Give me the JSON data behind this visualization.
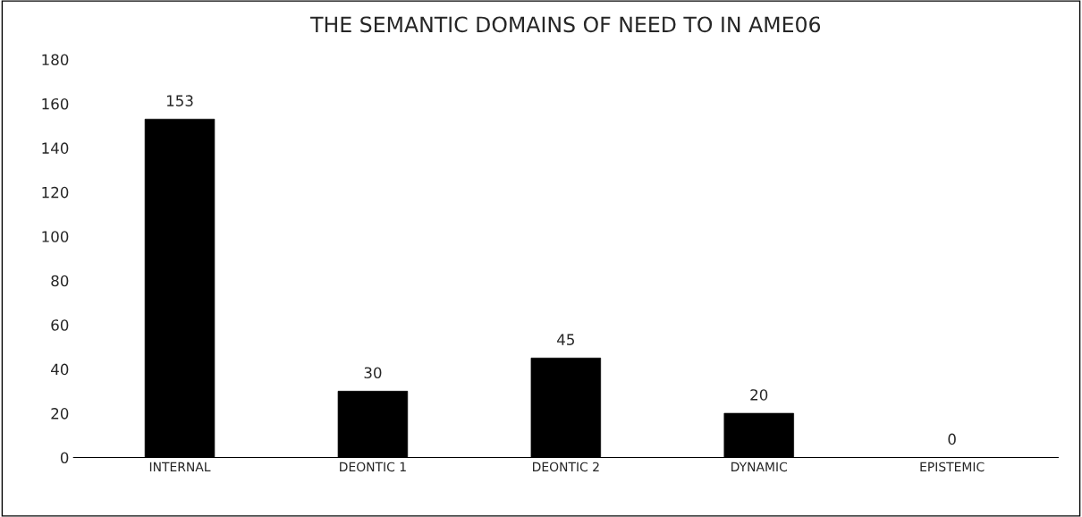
{
  "chart_data": {
    "type": "bar",
    "title": "THE SEMANTIC DOMAINS OF NEED TO IN AME06",
    "categories": [
      "INTERNAL",
      "DEONTIC 1",
      "DEONTIC 2",
      "DYNAMIC",
      "EPISTEMIC"
    ],
    "values": [
      153,
      30,
      45,
      20,
      0
    ],
    "color": "#000000",
    "ylim": [
      0,
      180
    ],
    "yticks": [
      0,
      20,
      40,
      60,
      80,
      100,
      120,
      140,
      160,
      180
    ],
    "data_labels": true,
    "grid": false,
    "legend": false
  }
}
